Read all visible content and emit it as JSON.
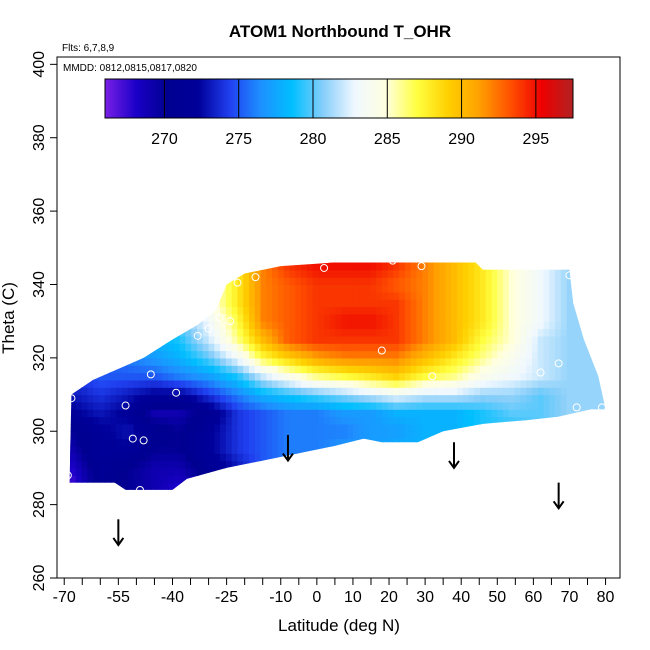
{
  "chart_data": {
    "type": "heatmap",
    "title": "ATOM1 Northbound T_OHR",
    "annotations": {
      "flights": "Flts: 6,7,8,9",
      "dates": "MMDD: 0812,0815,0817,0820"
    },
    "xlabel": "Latitude (deg N)",
    "ylabel": "Theta (C)",
    "xlim": [
      -72,
      84
    ],
    "ylim": [
      260,
      402
    ],
    "x_ticks": [
      -70,
      -55,
      -40,
      -25,
      -10,
      0,
      10,
      20,
      30,
      40,
      50,
      60,
      70,
      80
    ],
    "x_tick_labels": [
      "-70",
      "-55",
      "-40",
      "-25",
      "-10",
      "0",
      "10",
      "20",
      "30",
      "40",
      "50",
      "60",
      "70",
      "80"
    ],
    "x_minor_ticks": [
      -65,
      -60,
      -50,
      -45,
      -35,
      -30,
      -20,
      -15,
      -5,
      5,
      15,
      25,
      35,
      45,
      55,
      65,
      75
    ],
    "y_ticks": [
      260,
      280,
      300,
      320,
      340,
      360,
      380,
      400
    ],
    "y_tick_labels": [
      "260",
      "280",
      "300",
      "320",
      "340",
      "360",
      "380",
      "400"
    ],
    "colorbar": {
      "range": [
        266,
        297.5
      ],
      "ticks": [
        270,
        275,
        280,
        285,
        290,
        295
      ],
      "tick_labels": [
        "270",
        "275",
        "280",
        "285",
        "290",
        "295"
      ]
    },
    "field": {
      "lat": [
        -68,
        -60,
        -52,
        -45,
        -38,
        -30,
        -22,
        -15,
        -8,
        0,
        8,
        15,
        22,
        30,
        38,
        46,
        54,
        62,
        70,
        78
      ],
      "theta": [
        285,
        290,
        295,
        300,
        305,
        310,
        315,
        320,
        325,
        330,
        335,
        340,
        345
      ],
      "boundary": [
        [
          -68.5,
          286
        ],
        [
          -56,
          286
        ],
        [
          -53,
          284
        ],
        [
          -50,
          284
        ],
        [
          -46,
          284
        ],
        [
          -40,
          284
        ],
        [
          -36,
          287
        ],
        [
          -25,
          290
        ],
        [
          -15,
          292
        ],
        [
          -5,
          294
        ],
        [
          5,
          296
        ],
        [
          13,
          298
        ],
        [
          18,
          297
        ],
        [
          28,
          297
        ],
        [
          35,
          300
        ],
        [
          46,
          302
        ],
        [
          58,
          303
        ],
        [
          67,
          304
        ],
        [
          76,
          306
        ],
        [
          80,
          306
        ],
        [
          78,
          315
        ],
        [
          74,
          325
        ],
        [
          71,
          335
        ],
        [
          70,
          344
        ],
        [
          46,
          344
        ],
        [
          44,
          346
        ],
        [
          5,
          346
        ],
        [
          -10,
          345
        ],
        [
          -20,
          343
        ],
        [
          -25,
          340
        ],
        [
          -28,
          333
        ],
        [
          -33,
          329
        ],
        [
          -40,
          325
        ],
        [
          -48,
          320
        ],
        [
          -55,
          317
        ],
        [
          -62,
          314
        ],
        [
          -68,
          310
        ]
      ],
      "values": [
        [
          267,
          271,
          270,
          269,
          268,
          270,
          272,
          274,
          275,
          276,
          277,
          277,
          278,
          279,
          279,
          279,
          280,
          280,
          281,
          281
        ],
        [
          268,
          271,
          270,
          269,
          269,
          271,
          273,
          275,
          276,
          277,
          277,
          277,
          278,
          279,
          279,
          280,
          280,
          281,
          281,
          281
        ],
        [
          269,
          272,
          272,
          270,
          270,
          272,
          274,
          275,
          276,
          276,
          277,
          277,
          278,
          278,
          279,
          279,
          280,
          280,
          281,
          281
        ],
        [
          270,
          272,
          273,
          271,
          270,
          272,
          274,
          275,
          276,
          276,
          276,
          277,
          277,
          278,
          278,
          279,
          279,
          280,
          280,
          280
        ],
        [
          272,
          273,
          272,
          269,
          269,
          271,
          274,
          275,
          276,
          276,
          277,
          277,
          278,
          278,
          278,
          279,
          280,
          280,
          281,
          281
        ],
        [
          273,
          274,
          273,
          272,
          272,
          274,
          276,
          278,
          279,
          280,
          281,
          282,
          283,
          282,
          282,
          281,
          281,
          280,
          281,
          281
        ],
        [
          274,
          275,
          275,
          275,
          276,
          277,
          279,
          282,
          284,
          286,
          287,
          288,
          289,
          287,
          286,
          284,
          283,
          282,
          281,
          281
        ],
        [
          275,
          275,
          276,
          277,
          278,
          280,
          283,
          287,
          289,
          291,
          292,
          292,
          292,
          290,
          288,
          286,
          284,
          282,
          281,
          281
        ],
        [
          276,
          276,
          277,
          278,
          279,
          282,
          286,
          290,
          293,
          294,
          294,
          294,
          294,
          292,
          290,
          287,
          285,
          282,
          281,
          281
        ],
        [
          276,
          276,
          277,
          278,
          280,
          283,
          287,
          292,
          293,
          294,
          295,
          295,
          294,
          292,
          290,
          288,
          285,
          283,
          281,
          281
        ],
        [
          276,
          276,
          277,
          279,
          281,
          284,
          288,
          292,
          293,
          294,
          294,
          294,
          294,
          292,
          290,
          288,
          285,
          283,
          281,
          281
        ],
        [
          276,
          276,
          277,
          279,
          281,
          284,
          288,
          292,
          293,
          294,
          294,
          294,
          293,
          292,
          290,
          288,
          285,
          283,
          281,
          281
        ],
        [
          276,
          276,
          277,
          279,
          281,
          284,
          288,
          292,
          294,
          295,
          295,
          295,
          294,
          292,
          290,
          288,
          285,
          283,
          281,
          281
        ]
      ]
    },
    "sample_points": [
      {
        "lat": -68,
        "theta": 309
      },
      {
        "lat": -69,
        "theta": 288
      },
      {
        "lat": -53,
        "theta": 307
      },
      {
        "lat": -51,
        "theta": 298
      },
      {
        "lat": -48,
        "theta": 297.5
      },
      {
        "lat": -49,
        "theta": 284
      },
      {
        "lat": -46,
        "theta": 315.5
      },
      {
        "lat": -39,
        "theta": 310.5
      },
      {
        "lat": -33,
        "theta": 326
      },
      {
        "lat": -30,
        "theta": 328
      },
      {
        "lat": -27,
        "theta": 331
      },
      {
        "lat": -24,
        "theta": 330
      },
      {
        "lat": -22,
        "theta": 340.5
      },
      {
        "lat": -17,
        "theta": 342
      },
      {
        "lat": 2,
        "theta": 344.5
      },
      {
        "lat": 15,
        "theta": 347.5
      },
      {
        "lat": 21,
        "theta": 346.5
      },
      {
        "lat": 29,
        "theta": 345
      },
      {
        "lat": 18,
        "theta": 322
      },
      {
        "lat": 32,
        "theta": 315
      },
      {
        "lat": 62,
        "theta": 316
      },
      {
        "lat": 67,
        "theta": 318.5
      },
      {
        "lat": 70,
        "theta": 342.5
      },
      {
        "lat": 72,
        "theta": 306.5
      },
      {
        "lat": 79,
        "theta": 306.5
      }
    ],
    "arrows": [
      {
        "lat": -55,
        "theta_top": 276,
        "theta_tip": 269
      },
      {
        "lat": -8,
        "theta_top": 299,
        "theta_tip": 292
      },
      {
        "lat": 38,
        "theta_top": 297,
        "theta_tip": 290
      },
      {
        "lat": 67,
        "theta_top": 286,
        "theta_tip": 279
      }
    ]
  },
  "colors": {
    "colormap": [
      "#7a1fe6",
      "#1a00c8",
      "#000090",
      "#00009a",
      "#2040f0",
      "#1e90ff",
      "#00bfff",
      "#87cefa",
      "#f0f8ff",
      "#ffffe0",
      "#ffff40",
      "#ffd000",
      "#ffa000",
      "#ff5000",
      "#ee0000",
      "#b22222"
    ],
    "frame": "#000000",
    "arrow": "#000000",
    "point": "#ffffff"
  }
}
